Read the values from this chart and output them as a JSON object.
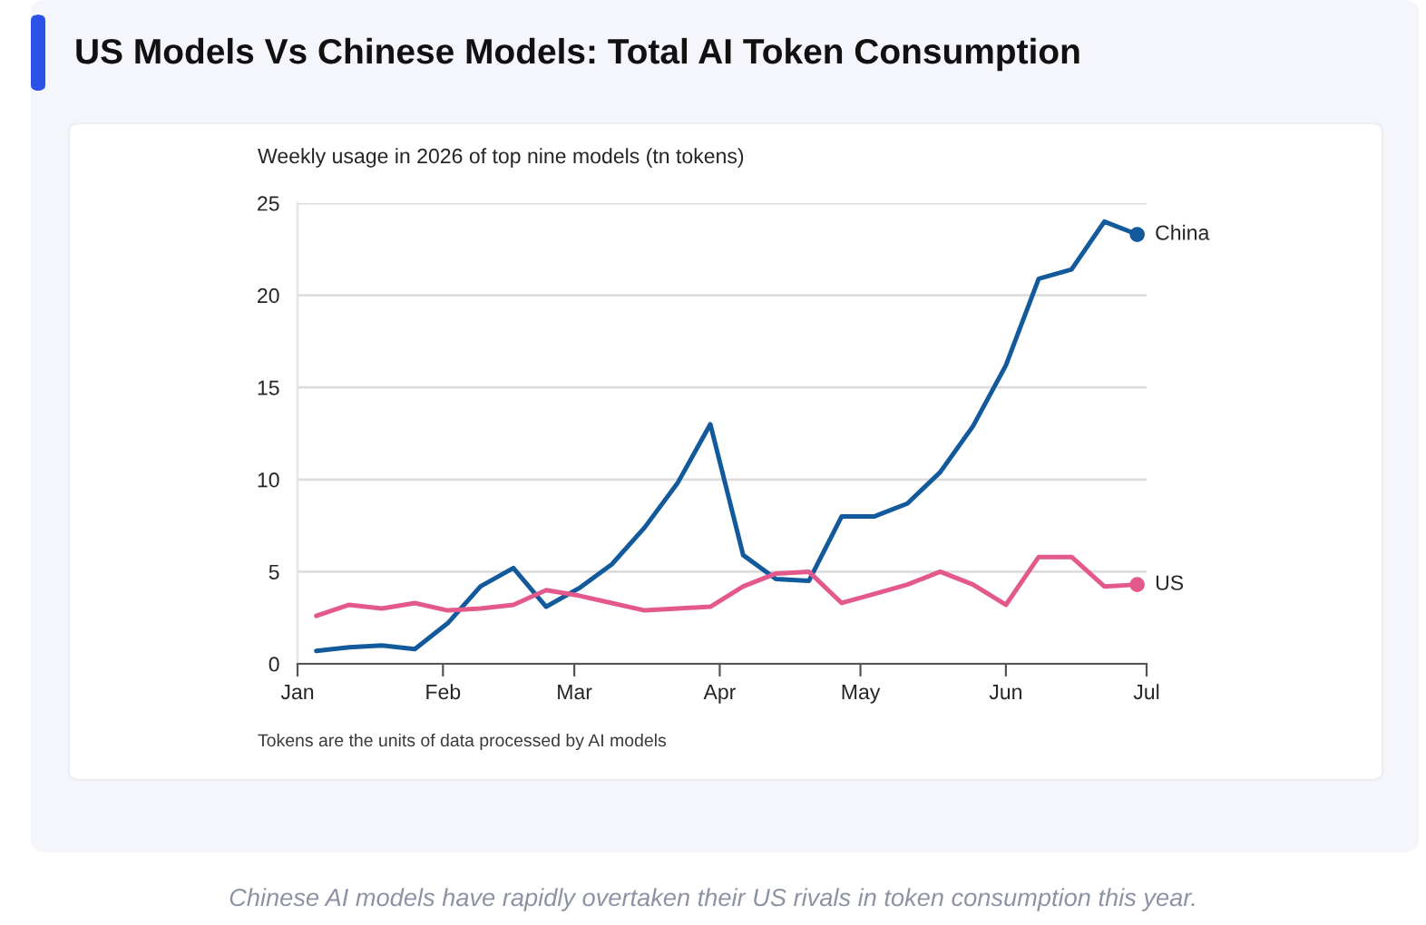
{
  "chart_data": {
    "type": "line",
    "title": "US Models Vs Chinese Models: Total AI Token Consumption",
    "subtitle": "Weekly usage in 2026 of top nine models (tn tokens)",
    "x": [
      "2026-01-05",
      "2026-01-12",
      "2026-01-19",
      "2026-01-26",
      "2026-02-02",
      "2026-02-09",
      "2026-02-16",
      "2026-02-23",
      "2026-03-02",
      "2026-03-09",
      "2026-03-16",
      "2026-03-23",
      "2026-03-30",
      "2026-04-06",
      "2026-04-13",
      "2026-04-20",
      "2026-04-27",
      "2026-05-04",
      "2026-05-11",
      "2026-05-18",
      "2026-05-25",
      "2026-06-01",
      "2026-06-08",
      "2026-06-15",
      "2026-06-22",
      "2026-06-29"
    ],
    "series": [
      {
        "name": "China",
        "color": "#135a9c",
        "values": [
          0.7,
          0.9,
          1.0,
          0.8,
          2.2,
          4.2,
          5.2,
          3.1,
          4.1,
          5.4,
          7.4,
          9.8,
          13.0,
          5.9,
          4.6,
          4.5,
          8.0,
          8.0,
          8.7,
          10.4,
          12.9,
          16.2,
          20.9,
          21.4,
          24.0,
          23.3
        ]
      },
      {
        "name": "US",
        "color": "#e3598b",
        "values": [
          2.6,
          3.2,
          3.0,
          3.3,
          2.9,
          3.0,
          3.2,
          4.0,
          3.7,
          3.3,
          2.9,
          3.0,
          3.1,
          4.2,
          4.9,
          5.0,
          3.3,
          3.8,
          4.3,
          5.0,
          4.3,
          3.2,
          5.8,
          5.8,
          4.2,
          4.3
        ]
      }
    ],
    "xlim": [
      "2026-01-01",
      "2026-07-01"
    ],
    "xticks": [
      {
        "value": "2026-01-01",
        "label": "Jan"
      },
      {
        "value": "2026-02-01",
        "label": "Feb"
      },
      {
        "value": "2026-03-01",
        "label": "Mar"
      },
      {
        "value": "2026-04-01",
        "label": "Apr"
      },
      {
        "value": "2026-05-01",
        "label": "May"
      },
      {
        "value": "2026-06-01",
        "label": "Jun"
      },
      {
        "value": "2026-07-01",
        "label": "Jul"
      }
    ],
    "ylim": [
      0,
      25
    ],
    "yticks": [
      0,
      5,
      10,
      15,
      20,
      25
    ],
    "grid": "y",
    "line_style": "solid",
    "annotations": [
      "Tokens are the units of data processed by AI models",
      "Chinese AI models have rapidly overtaken their US rivals in token consumption this year."
    ]
  }
}
